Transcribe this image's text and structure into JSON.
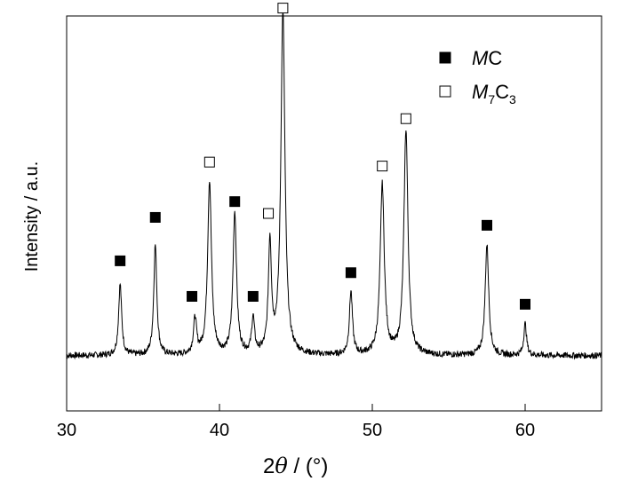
{
  "chart_data": {
    "type": "line",
    "xlabel": {
      "prefix": "2",
      "symbol": "θ",
      "suffix": " / (°)"
    },
    "ylabel": "Intensity / a.u.",
    "xlim": [
      30,
      65
    ],
    "ylim": [
      0,
      100
    ],
    "xticks": [
      30,
      40,
      50,
      60
    ],
    "grid": false,
    "legend": {
      "placement": "top-right",
      "entries": [
        {
          "marker": "filled-square",
          "base": "M",
          "main": "C",
          "sub1": "",
          "mid": "",
          "sub2": ""
        },
        {
          "marker": "open-square",
          "base": "M",
          "main": "",
          "sub1": "7",
          "mid": "C",
          "sub2": "3"
        }
      ]
    },
    "baseline": 14,
    "peaks": [
      {
        "x": 33.5,
        "height": 18,
        "width": 0.12
      },
      {
        "x": 35.8,
        "height": 28,
        "width": 0.12
      },
      {
        "x": 38.4,
        "height": 9,
        "width": 0.12
      },
      {
        "x": 39.35,
        "height": 44,
        "width": 0.15
      },
      {
        "x": 41.0,
        "height": 36,
        "width": 0.14
      },
      {
        "x": 42.2,
        "height": 9,
        "width": 0.11
      },
      {
        "x": 43.3,
        "height": 28,
        "width": 0.12
      },
      {
        "x": 44.15,
        "height": 87,
        "width": 0.16
      },
      {
        "x": 48.6,
        "height": 16,
        "width": 0.12
      },
      {
        "x": 50.65,
        "height": 43,
        "width": 0.16
      },
      {
        "x": 52.2,
        "height": 57,
        "width": 0.16
      },
      {
        "x": 57.5,
        "height": 28,
        "width": 0.14
      },
      {
        "x": 60.0,
        "height": 8,
        "width": 0.11
      }
    ],
    "markers": [
      {
        "x": 33.5,
        "y": 38,
        "phase": "MC"
      },
      {
        "x": 35.8,
        "y": 49,
        "phase": "MC"
      },
      {
        "x": 38.2,
        "y": 29,
        "phase": "MC"
      },
      {
        "x": 39.35,
        "y": 63,
        "phase": "M7C3"
      },
      {
        "x": 41.0,
        "y": 53,
        "phase": "MC"
      },
      {
        "x": 42.2,
        "y": 29,
        "phase": "MC"
      },
      {
        "x": 43.2,
        "y": 50,
        "phase": "M7C3"
      },
      {
        "x": 44.15,
        "y": 102,
        "phase": "M7C3"
      },
      {
        "x": 48.6,
        "y": 35,
        "phase": "MC"
      },
      {
        "x": 50.65,
        "y": 62,
        "phase": "M7C3"
      },
      {
        "x": 52.2,
        "y": 74,
        "phase": "M7C3"
      },
      {
        "x": 57.5,
        "y": 47,
        "phase": "MC"
      },
      {
        "x": 60.0,
        "y": 27,
        "phase": "MC"
      }
    ]
  }
}
